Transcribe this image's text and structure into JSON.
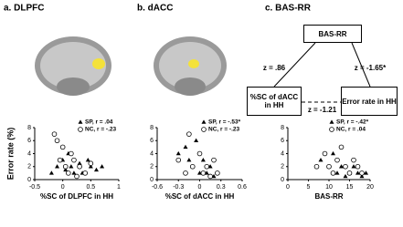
{
  "chart_data": [
    {
      "type": "scatter",
      "title": "a. DLPFC",
      "ylabel": "Error rate (%)",
      "xlabel": "%SC of DLPFC in HH",
      "xlim": [
        -0.5,
        1
      ],
      "xticks": [
        -0.5,
        0,
        0.5,
        1
      ],
      "ylim": [
        0,
        8
      ],
      "yticks": [
        0,
        2,
        4,
        6,
        8
      ],
      "legend": "upper right",
      "series": [
        {
          "name": "SP, r = .04",
          "marker": "triangle",
          "color": "#000000",
          "x": [
            -0.2,
            -0.1,
            0,
            0.05,
            0.1,
            0.15,
            0.2,
            0.3,
            0.35,
            0.45,
            0.5,
            0.6,
            0.7
          ],
          "values": [
            1,
            2,
            3,
            1.5,
            4,
            2,
            1,
            2.5,
            1,
            3,
            2,
            1.5,
            2
          ]
        },
        {
          "name": "NC, r = -.23",
          "marker": "circle",
          "color": "#000000",
          "x": [
            -0.15,
            -0.1,
            -0.05,
            0,
            0.05,
            0.1,
            0.15,
            0.2,
            0.25,
            0.3,
            0.4,
            0.5
          ],
          "values": [
            7,
            6,
            3,
            5,
            2,
            1,
            4,
            3,
            0.5,
            2,
            1,
            2.5
          ]
        }
      ]
    },
    {
      "type": "scatter",
      "title": "b. dACC",
      "xlabel": "%SC of dACC in HH",
      "xlim": [
        -0.6,
        0.6
      ],
      "xticks": [
        -0.6,
        -0.3,
        0,
        0.3,
        0.6
      ],
      "ylim": [
        0,
        8
      ],
      "yticks": [
        0,
        2,
        4,
        6,
        8
      ],
      "legend": "upper right",
      "series": [
        {
          "name": "SP, r = -.53*",
          "marker": "triangle",
          "color": "#000000",
          "x": [
            -0.3,
            -0.2,
            -0.15,
            -0.1,
            -0.05,
            0,
            0.05,
            0.1,
            0.15,
            0.2,
            0.25
          ],
          "values": [
            4,
            5,
            3,
            2,
            6,
            1,
            3,
            1,
            2,
            0.5,
            1
          ]
        },
        {
          "name": "NC, r = -.23",
          "marker": "circle",
          "color": "#000000",
          "x": [
            -0.3,
            -0.2,
            -0.15,
            -0.1,
            0,
            0.05,
            0.1,
            0.15,
            0.2,
            0.25
          ],
          "values": [
            3,
            1,
            7,
            2,
            4,
            1,
            2,
            0.5,
            3,
            1
          ]
        }
      ]
    },
    {
      "type": "scatter",
      "xlabel": "BAS-RR",
      "xlim": [
        0,
        20
      ],
      "xticks": [
        0,
        5,
        10,
        15,
        20
      ],
      "ylim": [
        0,
        8
      ],
      "yticks": [
        0,
        2,
        4,
        6,
        8
      ],
      "legend": "upper right",
      "series": [
        {
          "name": "SP, r = -.42*",
          "marker": "triangle",
          "color": "#000000",
          "x": [
            8,
            10,
            11,
            12,
            13,
            14,
            15,
            16,
            17,
            18,
            19
          ],
          "values": [
            3,
            2,
            4,
            1,
            2,
            0.5,
            1,
            2,
            1,
            0.5,
            1
          ]
        },
        {
          "name": "NC, r = .04",
          "marker": "circle",
          "color": "#000000",
          "x": [
            7,
            9,
            10,
            11,
            12,
            13,
            14,
            15,
            16,
            17,
            18
          ],
          "values": [
            2,
            4,
            2,
            1,
            3,
            5,
            2,
            1,
            3,
            2,
            1
          ]
        }
      ]
    }
  ],
  "diagram": {
    "title": "c. BAS-RR",
    "nodes": [
      {
        "label": "BAS-RR"
      },
      {
        "label": "%SC of dACC in HH"
      },
      {
        "label": "Error rate in HH"
      }
    ],
    "edges": [
      {
        "label": "z = .86"
      },
      {
        "label": "z = -1.65*"
      },
      {
        "label": "z = -1.21"
      }
    ]
  }
}
